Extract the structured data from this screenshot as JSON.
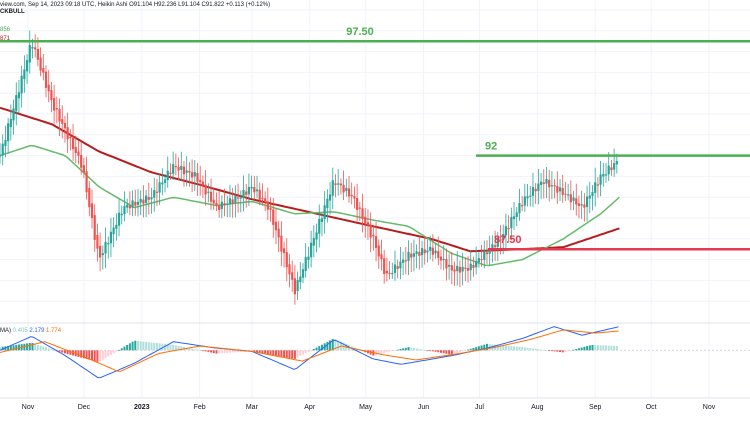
{
  "header": {
    "source": "view.com, Sep 14, 2023 09:18 UTC",
    "style": "Heikin Ashi",
    "ohlc": [
      "O91.104",
      "H92.236",
      "L91.104",
      "C91.822",
      "+0.113 (+0.12%)"
    ],
    "symbol_fragment": "CKBULL",
    "ma_values": [
      {
        "value": "856",
        "color": "#4caf50"
      },
      {
        "value": "871",
        "color": "#b71c1c"
      }
    ]
  },
  "macd_header": {
    "label": "MA)",
    "values": [
      {
        "value": "0.405",
        "color": "#80cbc4"
      },
      {
        "value": "2.179",
        "color": "#2962ff"
      },
      {
        "value": "1.774",
        "color": "#ff6d00"
      }
    ]
  },
  "colors": {
    "up": "#26a69a",
    "down": "#ef5350",
    "ma_fast": "#66bb6a",
    "ma_slow": "#b71c1c",
    "macd_line": "#2962ff",
    "signal_line": "#ff6d00",
    "level_green": "#4caf50",
    "level_red": "#e53950"
  },
  "chart_data": {
    "type": "candlestick",
    "style": "Heikin Ashi",
    "x_axis_labels": [
      "Nov",
      "Dec",
      "2023",
      "Feb",
      "Mar",
      "Apr",
      "May",
      "Jun",
      "Jul",
      "Aug",
      "Sep",
      "Oct",
      "Nov"
    ],
    "y_range": [
      84.0,
      99.0
    ],
    "levels": [
      {
        "label": "97.50",
        "value": 97.5,
        "color": "#4caf50"
      },
      {
        "label": "92",
        "value": 92.0,
        "color": "#4caf50"
      },
      {
        "label": "87.50",
        "value": 87.5,
        "color": "#e53950"
      }
    ],
    "price_anchors": [
      {
        "date": "2022-10-17",
        "price": 92.0
      },
      {
        "date": "2022-10-28",
        "price": 95.5
      },
      {
        "date": "2022-11-03",
        "price": 97.5
      },
      {
        "date": "2022-11-14",
        "price": 94.5
      },
      {
        "date": "2022-11-30",
        "price": 91.5
      },
      {
        "date": "2022-12-09",
        "price": 87.0
      },
      {
        "date": "2022-12-22",
        "price": 89.5
      },
      {
        "date": "2023-01-06",
        "price": 90.0
      },
      {
        "date": "2023-01-18",
        "price": 91.5
      },
      {
        "date": "2023-01-30",
        "price": 91.0
      },
      {
        "date": "2023-02-10",
        "price": 89.5
      },
      {
        "date": "2023-02-22",
        "price": 90.0
      },
      {
        "date": "2023-03-01",
        "price": 90.5
      },
      {
        "date": "2023-03-10",
        "price": 89.5
      },
      {
        "date": "2023-03-24",
        "price": 85.5
      },
      {
        "date": "2023-04-05",
        "price": 88.5
      },
      {
        "date": "2023-04-14",
        "price": 90.8
      },
      {
        "date": "2023-04-24",
        "price": 90.0
      },
      {
        "date": "2023-05-05",
        "price": 88.0
      },
      {
        "date": "2023-05-12",
        "price": 86.2
      },
      {
        "date": "2023-05-24",
        "price": 87.2
      },
      {
        "date": "2023-06-05",
        "price": 87.5
      },
      {
        "date": "2023-06-16",
        "price": 86.5
      },
      {
        "date": "2023-06-26",
        "price": 86.6
      },
      {
        "date": "2023-07-12",
        "price": 88.0
      },
      {
        "date": "2023-07-24",
        "price": 89.8
      },
      {
        "date": "2023-08-04",
        "price": 90.8
      },
      {
        "date": "2023-08-15",
        "price": 90.2
      },
      {
        "date": "2023-08-25",
        "price": 89.5
      },
      {
        "date": "2023-09-04",
        "price": 91.0
      },
      {
        "date": "2023-09-14",
        "price": 91.8
      }
    ],
    "ma_fast_anchors": [
      {
        "date": "2022-10-17",
        "price": 92.0
      },
      {
        "date": "2022-11-03",
        "price": 92.5
      },
      {
        "date": "2022-11-21",
        "price": 92.0
      },
      {
        "date": "2022-12-09",
        "price": 90.5
      },
      {
        "date": "2022-12-28",
        "price": 89.5
      },
      {
        "date": "2023-01-18",
        "price": 90.0
      },
      {
        "date": "2023-02-10",
        "price": 89.6
      },
      {
        "date": "2023-03-01",
        "price": 89.8
      },
      {
        "date": "2023-03-24",
        "price": 89.2
      },
      {
        "date": "2023-04-14",
        "price": 89.3
      },
      {
        "date": "2023-05-05",
        "price": 88.9
      },
      {
        "date": "2023-05-24",
        "price": 88.6
      },
      {
        "date": "2023-06-16",
        "price": 87.3
      },
      {
        "date": "2023-07-05",
        "price": 86.7
      },
      {
        "date": "2023-07-24",
        "price": 87.0
      },
      {
        "date": "2023-08-15",
        "price": 88.0
      },
      {
        "date": "2023-09-04",
        "price": 89.2
      },
      {
        "date": "2023-09-14",
        "price": 90.0
      }
    ],
    "ma_slow_anchors": [
      {
        "date": "2022-10-17",
        "price": 94.3
      },
      {
        "date": "2022-11-14",
        "price": 93.5
      },
      {
        "date": "2022-12-09",
        "price": 92.2
      },
      {
        "date": "2023-01-06",
        "price": 91.2
      },
      {
        "date": "2023-02-01",
        "price": 90.6
      },
      {
        "date": "2023-03-01",
        "price": 89.9
      },
      {
        "date": "2023-04-05",
        "price": 89.2
      },
      {
        "date": "2023-05-05",
        "price": 88.6
      },
      {
        "date": "2023-06-05",
        "price": 88.0
      },
      {
        "date": "2023-06-26",
        "price": 87.4
      },
      {
        "date": "2023-07-24",
        "price": 87.5
      },
      {
        "date": "2023-08-15",
        "price": 87.6
      },
      {
        "date": "2023-09-04",
        "price": 88.2
      },
      {
        "date": "2023-09-14",
        "price": 88.5
      }
    ],
    "macd": {
      "y_range": [
        -3.5,
        3.0
      ],
      "hist_anchors": [
        {
          "date": "2022-10-17",
          "value": 0.3
        },
        {
          "date": "2022-11-03",
          "value": 0.7
        },
        {
          "date": "2022-11-21",
          "value": -0.3
        },
        {
          "date": "2022-12-09",
          "value": -1.1
        },
        {
          "date": "2022-12-28",
          "value": 0.9
        },
        {
          "date": "2023-01-18",
          "value": 0.5
        },
        {
          "date": "2023-02-10",
          "value": -0.3
        },
        {
          "date": "2023-03-01",
          "value": -0.1
        },
        {
          "date": "2023-03-24",
          "value": -0.8
        },
        {
          "date": "2023-04-14",
          "value": 1.1
        },
        {
          "date": "2023-05-05",
          "value": -0.5
        },
        {
          "date": "2023-05-24",
          "value": 0.3
        },
        {
          "date": "2023-06-16",
          "value": -0.4
        },
        {
          "date": "2023-07-05",
          "value": 0.6
        },
        {
          "date": "2023-07-24",
          "value": 0.3
        },
        {
          "date": "2023-08-15",
          "value": -0.2
        },
        {
          "date": "2023-08-30",
          "value": 0.5
        },
        {
          "date": "2023-09-14",
          "value": 0.4
        }
      ],
      "macd_anchors": [
        {
          "date": "2022-10-17",
          "value": 0.0
        },
        {
          "date": "2022-11-03",
          "value": 1.3
        },
        {
          "date": "2022-11-21",
          "value": -0.5
        },
        {
          "date": "2022-12-09",
          "value": -2.6
        },
        {
          "date": "2022-12-28",
          "value": -1.2
        },
        {
          "date": "2023-01-18",
          "value": 0.8
        },
        {
          "date": "2023-02-10",
          "value": 0.2
        },
        {
          "date": "2023-03-01",
          "value": -0.1
        },
        {
          "date": "2023-03-24",
          "value": -1.8
        },
        {
          "date": "2023-04-14",
          "value": 1.0
        },
        {
          "date": "2023-05-05",
          "value": -0.8
        },
        {
          "date": "2023-05-20",
          "value": -1.3
        },
        {
          "date": "2023-06-16",
          "value": -0.5
        },
        {
          "date": "2023-07-05",
          "value": 0.2
        },
        {
          "date": "2023-07-24",
          "value": 1.1
        },
        {
          "date": "2023-08-10",
          "value": 2.2
        },
        {
          "date": "2023-08-25",
          "value": 1.4
        },
        {
          "date": "2023-09-14",
          "value": 2.2
        }
      ],
      "signal_anchors": [
        {
          "date": "2022-10-17",
          "value": -0.2
        },
        {
          "date": "2022-11-10",
          "value": 0.8
        },
        {
          "date": "2022-12-01",
          "value": -0.6
        },
        {
          "date": "2022-12-20",
          "value": -2.0
        },
        {
          "date": "2023-01-10",
          "value": -0.3
        },
        {
          "date": "2023-02-01",
          "value": 0.4
        },
        {
          "date": "2023-03-01",
          "value": -0.1
        },
        {
          "date": "2023-03-28",
          "value": -1.0
        },
        {
          "date": "2023-04-18",
          "value": 0.4
        },
        {
          "date": "2023-05-10",
          "value": -0.4
        },
        {
          "date": "2023-05-28",
          "value": -0.9
        },
        {
          "date": "2023-06-20",
          "value": -0.3
        },
        {
          "date": "2023-07-10",
          "value": 0.3
        },
        {
          "date": "2023-07-28",
          "value": 1.0
        },
        {
          "date": "2023-08-15",
          "value": 1.9
        },
        {
          "date": "2023-09-01",
          "value": 1.6
        },
        {
          "date": "2023-09-14",
          "value": 1.8
        }
      ]
    }
  }
}
